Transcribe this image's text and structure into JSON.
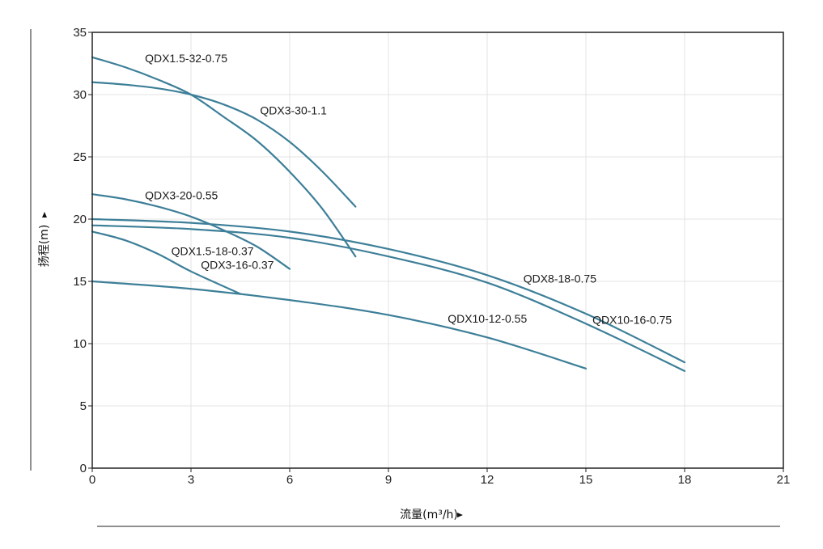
{
  "chart_data": {
    "type": "line",
    "title": "",
    "xlabel": "流量(m³/h)",
    "ylabel": "扬程(m)",
    "xlim": [
      0,
      21
    ],
    "ylim": [
      0,
      35
    ],
    "xticks": [
      "0",
      "3",
      "6",
      "9",
      "12",
      "15",
      "18",
      "21"
    ],
    "yticks": [
      "0",
      "5",
      "10",
      "15",
      "20",
      "25",
      "30",
      "35"
    ],
    "grid": true,
    "line_color": "#3d7f98",
    "series": [
      {
        "name": "QDX1.5-32-0.75",
        "x": [
          0,
          1,
          2,
          3,
          4,
          5,
          6,
          7,
          8
        ],
        "y": [
          33,
          32.2,
          31.2,
          30,
          28.2,
          26.3,
          23.8,
          20.8,
          17
        ],
        "label_at": [
          1.6,
          32.6
        ]
      },
      {
        "name": "QDX3-30-1.1",
        "x": [
          0,
          1,
          2,
          3,
          4,
          5,
          6,
          7,
          8
        ],
        "y": [
          31,
          30.8,
          30.5,
          30,
          29.2,
          28,
          26.2,
          23.8,
          21
        ],
        "label_at": [
          5.1,
          28.4
        ]
      },
      {
        "name": "QDX3-20-0.55",
        "x": [
          0,
          1,
          2,
          3,
          4,
          5,
          6
        ],
        "y": [
          22,
          21.6,
          21,
          20.2,
          19.1,
          17.8,
          16
        ],
        "label_at": [
          1.6,
          21.6
        ]
      },
      {
        "name": "QDX1.5-18-0.37",
        "x": [
          0,
          1,
          2,
          3,
          4.5
        ],
        "y": [
          19,
          18.3,
          17.2,
          15.8,
          14
        ],
        "label_at": [
          2.4,
          17.1
        ]
      },
      {
        "name": "QDX3-16-0.37",
        "x": [
          0,
          3,
          6,
          9,
          12,
          15
        ],
        "y": [
          15,
          14.4,
          13.5,
          12.3,
          10.5,
          8
        ],
        "label_at": [
          3.3,
          16.0
        ]
      },
      {
        "name": "QDX8-18-0.75",
        "x": [
          0,
          3,
          6,
          9,
          12,
          15,
          18
        ],
        "y": [
          20,
          19.7,
          19,
          17.6,
          15.5,
          12.4,
          8.5
        ],
        "label_at": [
          13.1,
          14.9
        ]
      },
      {
        "name": "QDX10-16-0.75",
        "x": [
          0,
          3,
          6,
          9,
          12,
          15,
          18
        ],
        "y": [
          19.5,
          19.2,
          18.5,
          17,
          14.9,
          11.6,
          7.8
        ],
        "label_at": [
          15.2,
          11.6
        ]
      },
      {
        "name": "QDX10-12-0.55",
        "x": [],
        "y": [],
        "label_at": [
          10.8,
          11.7
        ]
      }
    ]
  }
}
